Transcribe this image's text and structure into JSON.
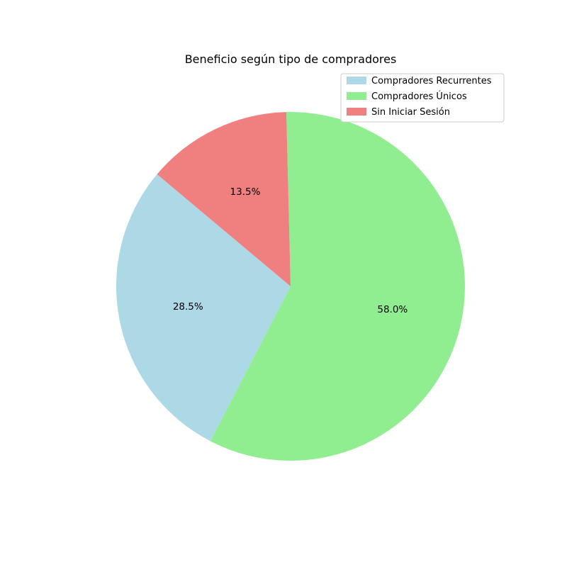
{
  "chart_data": {
    "type": "pie",
    "title": "Beneficio según tipo de compradores",
    "categories": [
      "Compradores Recurrentes",
      "Compradores Únicos",
      "Sin Iniciar Sesión"
    ],
    "values": [
      28.5,
      58.0,
      13.5
    ],
    "value_labels": [
      "28.5%",
      "58.0%",
      "13.5%"
    ],
    "colors": [
      "#add8e6",
      "#90ee90",
      "#f08080"
    ],
    "start_angle_deg": 140,
    "direction": "counterclockwise",
    "legend_position": "top-right"
  }
}
